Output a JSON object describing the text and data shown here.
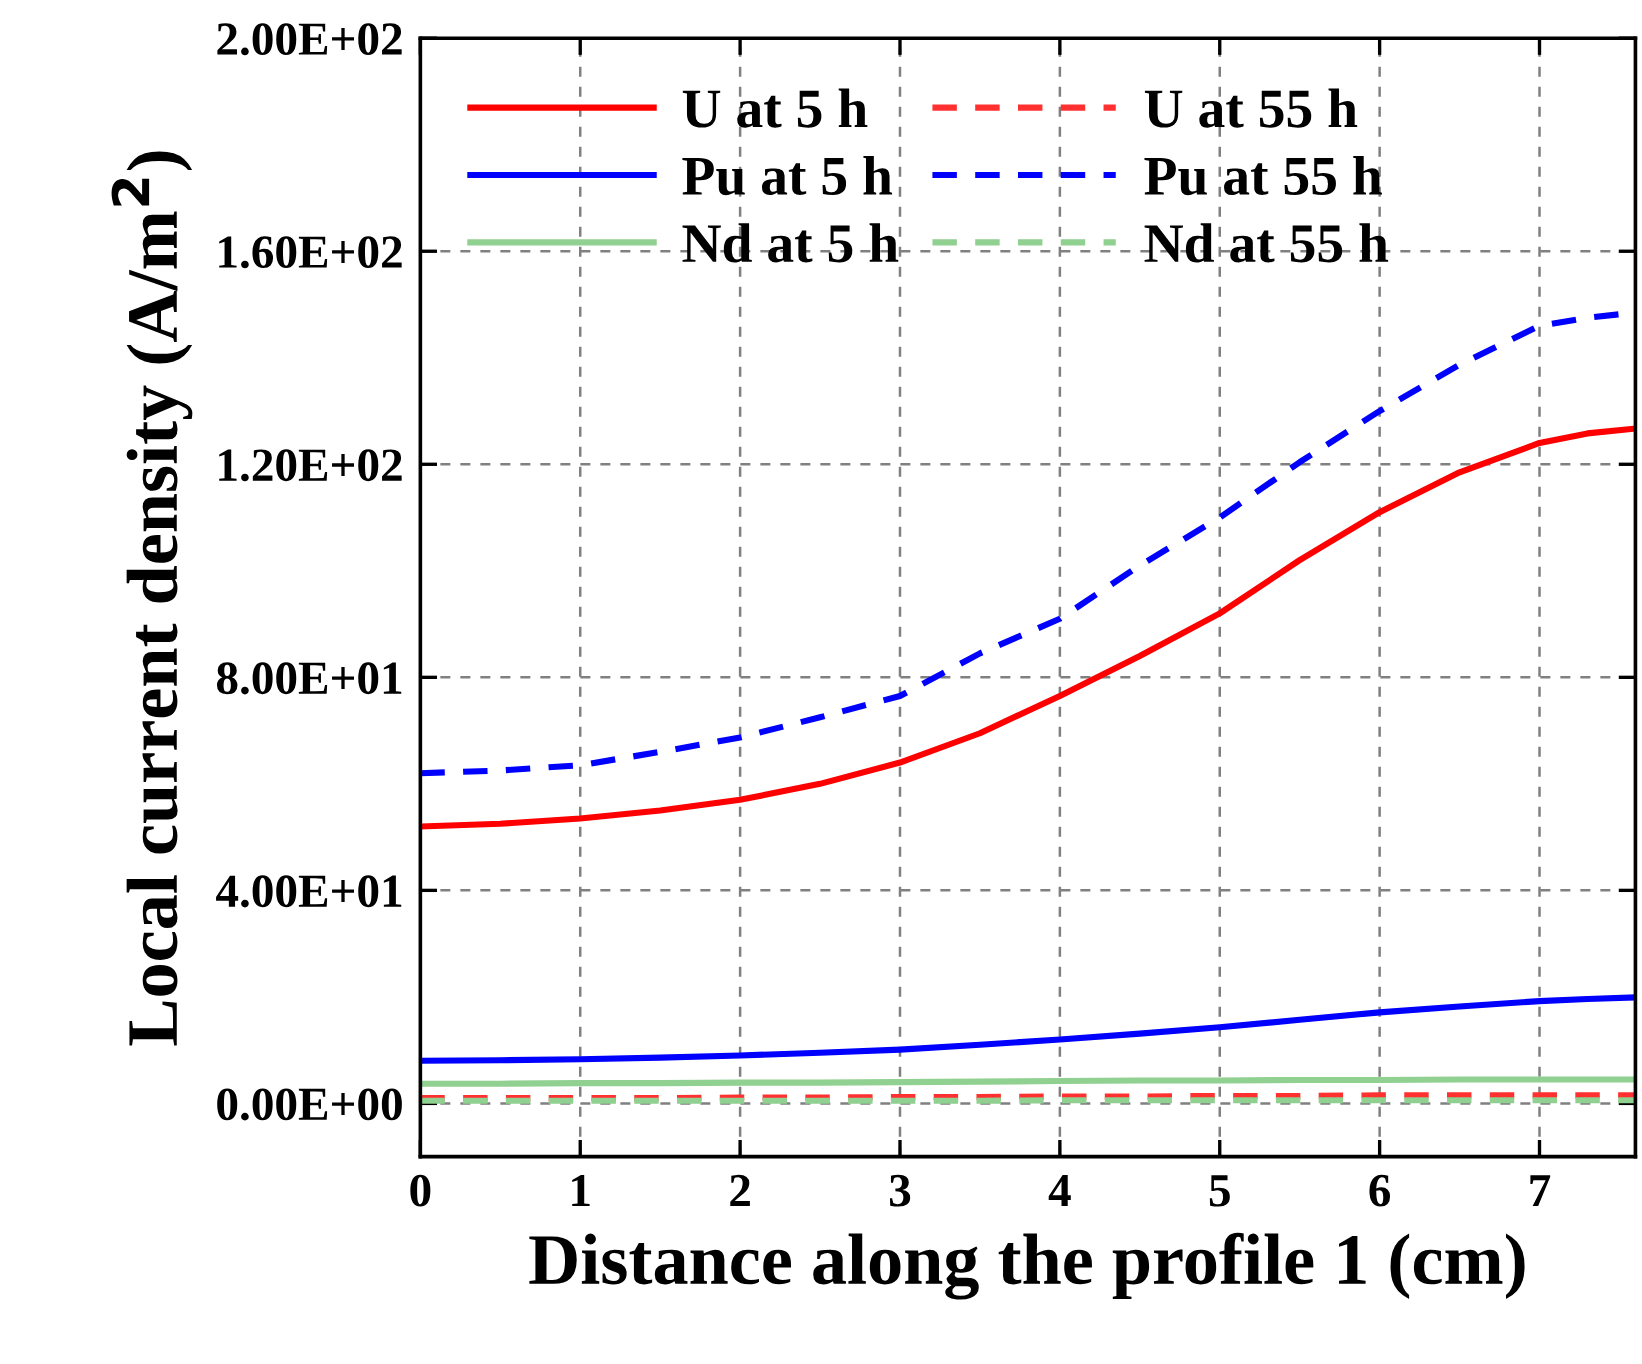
{
  "chart_data": {
    "type": "line",
    "xlabel": "Distance along the profile 1 (cm)",
    "ylabel": "Local current density (A/m$^{2}$)",
    "x": [
      0,
      0.5,
      1,
      1.5,
      2,
      2.5,
      3,
      3.5,
      4,
      4.5,
      5,
      5.5,
      6,
      6.5,
      7,
      7.3,
      7.6
    ],
    "xlim": [
      0,
      7.6
    ],
    "xticks": [
      0,
      1,
      2,
      3,
      4,
      5,
      6,
      7
    ],
    "ylim": [
      -10,
      200
    ],
    "yticks": [
      {
        "value": 0,
        "label": "0.00E+00"
      },
      {
        "value": 40,
        "label": "4.00E+01"
      },
      {
        "value": 80,
        "label": "8.00E+01"
      },
      {
        "value": 120,
        "label": "1.20E+02"
      },
      {
        "value": 160,
        "label": "1.60E+02"
      },
      {
        "value": 200,
        "label": "2.00E+02"
      }
    ],
    "grid": true,
    "legend": "top left",
    "marker": "none",
    "series": [
      {
        "name": "U at 5 h",
        "color": "#ff0000",
        "line_style": "solid",
        "values": [
          52,
          52.5,
          53.5,
          55,
          57,
          60,
          64,
          69.5,
          76.5,
          84,
          92,
          102,
          111,
          118.5,
          124,
          125.8,
          126.7
        ]
      },
      {
        "name": "Pu at 5 h",
        "color": "#0000ff",
        "line_style": "solid",
        "values": [
          8,
          8.1,
          8.3,
          8.6,
          9,
          9.5,
          10.1,
          11,
          12,
          13.1,
          14.3,
          15.7,
          17.1,
          18.2,
          19.2,
          19.6,
          19.9
        ]
      },
      {
        "name": "Nd at 5 h",
        "color": "#90d090",
        "line_style": "solid",
        "values": [
          3.7,
          3.7,
          3.8,
          3.8,
          3.9,
          3.9,
          4,
          4.1,
          4.2,
          4.3,
          4.3,
          4.4,
          4.4,
          4.5,
          4.5,
          4.5,
          4.5
        ]
      },
      {
        "name": "U at 55 h",
        "color": "#ff3030",
        "line_style": "dashed",
        "values": [
          1,
          1,
          1,
          1,
          1.1,
          1.1,
          1.2,
          1.2,
          1.3,
          1.3,
          1.4,
          1.4,
          1.5,
          1.5,
          1.5,
          1.5,
          1.5
        ]
      },
      {
        "name": "Pu at 55 h",
        "color": "#0000ff",
        "line_style": "dashed",
        "values": [
          62,
          62.5,
          63.5,
          66,
          68.7,
          72.5,
          76.5,
          84.5,
          91,
          101,
          110,
          120.4,
          130,
          138.7,
          146,
          147.5,
          148.5
        ]
      },
      {
        "name": "Nd at 55 h",
        "color": "#90d090",
        "line_style": "dashed",
        "values": [
          0.5,
          0.5,
          0.5,
          0.5,
          0.5,
          0.5,
          0.5,
          0.5,
          0.6,
          0.6,
          0.6,
          0.6,
          0.6,
          0.6,
          0.6,
          0.6,
          0.6
        ]
      }
    ]
  }
}
